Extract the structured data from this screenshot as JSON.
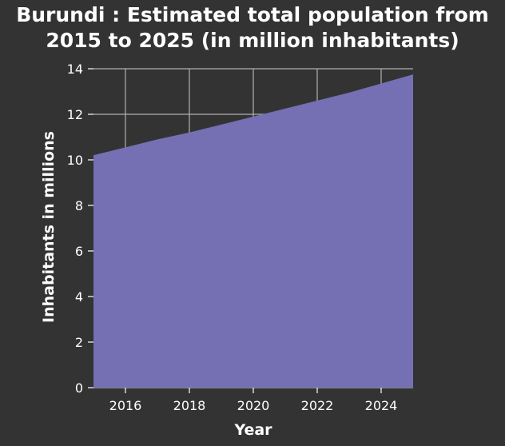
{
  "chart_data": {
    "type": "area",
    "title_lines": [
      "Burundi : Estimated total population from",
      "2015 to 2025 (in million inhabitants)"
    ],
    "xlabel": "Year",
    "ylabel": "Inhabitants in millions",
    "x": [
      2015,
      2016,
      2017,
      2018,
      2019,
      2020,
      2021,
      2022,
      2023,
      2024,
      2025
    ],
    "values": [
      10.2,
      10.55,
      10.9,
      11.2,
      11.55,
      11.9,
      12.25,
      12.6,
      12.95,
      13.35,
      13.75
    ],
    "xlim": [
      2015,
      2025
    ],
    "ylim": [
      0,
      14
    ],
    "x_ticks": [
      2016,
      2018,
      2020,
      2022,
      2024
    ],
    "y_ticks": [
      0,
      2,
      4,
      6,
      8,
      10,
      12,
      14
    ],
    "grid": true,
    "colors": {
      "background": "#333333",
      "area_fill": "#7570b3",
      "grid": "#b0b0b0",
      "text": "#ffffff"
    }
  }
}
